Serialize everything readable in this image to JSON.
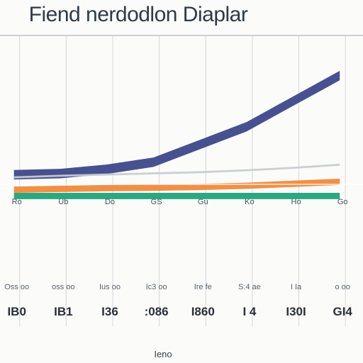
{
  "chart_data": {
    "type": "area",
    "title": "Fiend nerdodlon Diaplar",
    "xlabel": "Ieno",
    "ylabel": "",
    "grid": true,
    "legend": "none",
    "x": [
      1,
      2,
      3,
      4,
      5,
      6,
      7,
      8
    ],
    "top_tick_labels": [
      "Ro",
      "Ub",
      "Do",
      "GS",
      "Gu",
      "Ko",
      "Ho",
      "Go"
    ],
    "bottom_tick_labels": [
      {
        "small": "Oss oo",
        "big": "IB0"
      },
      {
        "small": "oss oo",
        "big": "IB1"
      },
      {
        "small": "Ius oo",
        "big": "I36"
      },
      {
        "small": "Ic3 oo",
        "big": ":086"
      },
      {
        "small": "Ire fe",
        "big": "I860"
      },
      {
        "small": "S:4 ae",
        "big": "I 4"
      },
      {
        "small": "I Ia",
        "big": "I30I"
      },
      {
        "small": "o oo",
        "big": "GI4"
      }
    ],
    "series": [
      {
        "values": [
          5.8,
          6.1,
          7.2,
          9.0,
          13.5,
          18.0,
          24.5,
          31.0
        ],
        "color": "#3d4889"
      },
      {
        "values": [
          4.2,
          4.6,
          4.9,
          5.2,
          5.5,
          6.0,
          6.6,
          7.4
        ],
        "color": "#c9cbd0"
      },
      {
        "values": [
          1.6,
          1.8,
          2.0,
          2.1,
          2.3,
          2.6,
          3.1,
          3.6
        ],
        "color": "#ef8a3c"
      },
      {
        "values": [
          0.0,
          0.0,
          0.0,
          0.0,
          0.0,
          0.0,
          0.0,
          0.0
        ],
        "color": "#1fa37a"
      }
    ],
    "xlim": [
      0.7,
      8.5
    ],
    "ylim": [
      0,
      40
    ]
  }
}
